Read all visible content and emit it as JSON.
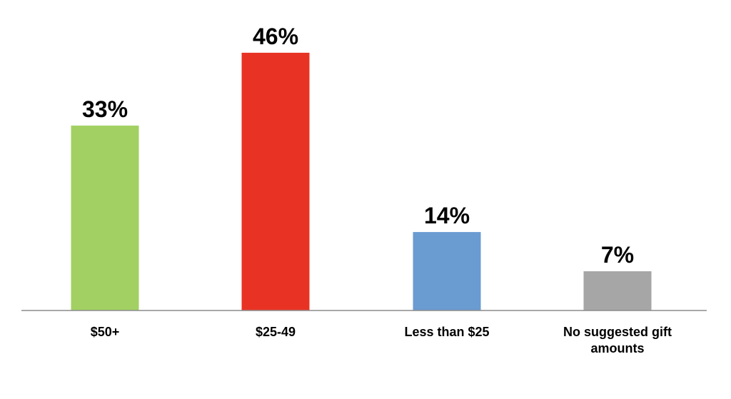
{
  "chart_data": {
    "type": "bar",
    "categories": [
      "$50+",
      "$25-49",
      "Less than $25",
      "No suggested gift amounts"
    ],
    "category_lines": [
      [
        "$50+"
      ],
      [
        "$25-49"
      ],
      [
        "Less than $25"
      ],
      [
        "No suggested gift",
        "amounts"
      ]
    ],
    "values": [
      33,
      46,
      14,
      7
    ],
    "data_labels": [
      "33%",
      "46%",
      "14%",
      "7%"
    ],
    "colors": [
      "#a2d063",
      "#e83324",
      "#6a9bd1",
      "#a6a6a6"
    ],
    "ylim": [
      0,
      46
    ],
    "grid": false,
    "legend": "none"
  }
}
